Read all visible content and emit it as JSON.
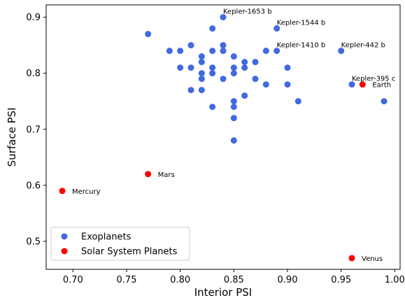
{
  "chart_data": {
    "type": "scatter",
    "xlabel": "Interior PSI",
    "ylabel": "Surface PSI",
    "xlim": [
      0.675,
      1.005
    ],
    "ylim": [
      0.45,
      0.922
    ],
    "xticks": [
      "0.70",
      "0.75",
      "0.80",
      "0.85",
      "0.90",
      "0.95",
      "1.00"
    ],
    "xtick_values": [
      0.7,
      0.75,
      0.8,
      0.85,
      0.9,
      0.95,
      1.0
    ],
    "yticks": [
      "0.5",
      "0.6",
      "0.7",
      "0.8",
      "0.9"
    ],
    "ytick_values": [
      0.5,
      0.6,
      0.7,
      0.8,
      0.9
    ],
    "grid": false,
    "legend_position": "lower-left",
    "series": [
      {
        "name": "Exoplanets",
        "color": "#4169E1",
        "points": [
          {
            "x": 0.77,
            "y": 0.87
          },
          {
            "x": 0.79,
            "y": 0.84
          },
          {
            "x": 0.8,
            "y": 0.84
          },
          {
            "x": 0.8,
            "y": 0.81
          },
          {
            "x": 0.81,
            "y": 0.85
          },
          {
            "x": 0.81,
            "y": 0.81
          },
          {
            "x": 0.81,
            "y": 0.77
          },
          {
            "x": 0.82,
            "y": 0.83
          },
          {
            "x": 0.82,
            "y": 0.82
          },
          {
            "x": 0.82,
            "y": 0.8
          },
          {
            "x": 0.82,
            "y": 0.79
          },
          {
            "x": 0.82,
            "y": 0.77
          },
          {
            "x": 0.83,
            "y": 0.88
          },
          {
            "x": 0.83,
            "y": 0.84
          },
          {
            "x": 0.83,
            "y": 0.81
          },
          {
            "x": 0.83,
            "y": 0.8
          },
          {
            "x": 0.83,
            "y": 0.74
          },
          {
            "x": 0.84,
            "y": 0.9,
            "label": "Kepler-1653 b"
          },
          {
            "x": 0.84,
            "y": 0.85
          },
          {
            "x": 0.84,
            "y": 0.84
          },
          {
            "x": 0.84,
            "y": 0.79
          },
          {
            "x": 0.85,
            "y": 0.83
          },
          {
            "x": 0.85,
            "y": 0.81
          },
          {
            "x": 0.85,
            "y": 0.8
          },
          {
            "x": 0.85,
            "y": 0.75
          },
          {
            "x": 0.85,
            "y": 0.74
          },
          {
            "x": 0.85,
            "y": 0.72
          },
          {
            "x": 0.85,
            "y": 0.68
          },
          {
            "x": 0.86,
            "y": 0.82
          },
          {
            "x": 0.86,
            "y": 0.81
          },
          {
            "x": 0.86,
            "y": 0.76
          },
          {
            "x": 0.87,
            "y": 0.82
          },
          {
            "x": 0.87,
            "y": 0.79
          },
          {
            "x": 0.88,
            "y": 0.84
          },
          {
            "x": 0.88,
            "y": 0.78
          },
          {
            "x": 0.89,
            "y": 0.88,
            "label": "Kepler-1544 b"
          },
          {
            "x": 0.89,
            "y": 0.84,
            "label": "Kepler-1410 b"
          },
          {
            "x": 0.9,
            "y": 0.81
          },
          {
            "x": 0.9,
            "y": 0.78
          },
          {
            "x": 0.91,
            "y": 0.75
          },
          {
            "x": 0.95,
            "y": 0.84,
            "label": "Kepler-442 b"
          },
          {
            "x": 0.96,
            "y": 0.78,
            "label": "Kepler-395 c"
          },
          {
            "x": 0.99,
            "y": 0.75
          }
        ]
      },
      {
        "name": "Solar System Planets",
        "color": "#FF0000",
        "points": [
          {
            "x": 0.69,
            "y": 0.59,
            "label": "Mercury"
          },
          {
            "x": 0.77,
            "y": 0.62,
            "label": "Mars"
          },
          {
            "x": 0.96,
            "y": 0.47,
            "label": "Venus"
          },
          {
            "x": 0.97,
            "y": 0.78,
            "label": "Earth"
          }
        ]
      }
    ]
  }
}
